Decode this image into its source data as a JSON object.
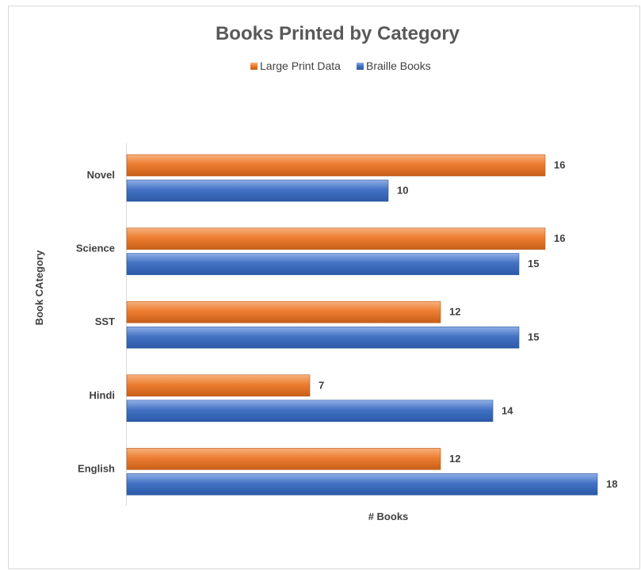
{
  "chart_data": {
    "type": "bar",
    "orientation": "horizontal",
    "title": "Books Printed by Category",
    "xlabel": "# Books",
    "ylabel": "Book CAtegory",
    "categories": [
      "Novel",
      "Science",
      "SST",
      "Hindi",
      "English"
    ],
    "series": [
      {
        "name": "Large Print Data",
        "color": "#ed7d31",
        "values": [
          16,
          16,
          12,
          7,
          12
        ]
      },
      {
        "name": "Braille Books",
        "color": "#4472c4",
        "values": [
          10,
          15,
          15,
          14,
          18
        ]
      }
    ],
    "xlim": [
      0,
      18
    ],
    "legend_position": "top",
    "grid": false,
    "data_labels": true
  }
}
